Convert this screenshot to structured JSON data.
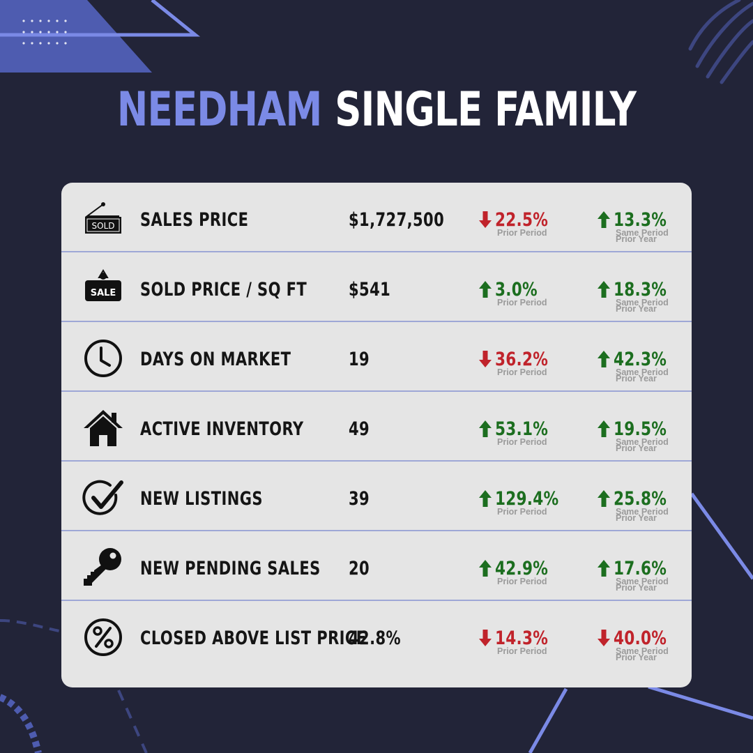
{
  "title": {
    "city": "NEEDHAM",
    "type": "SINGLE FAMILY"
  },
  "colors": {
    "background": "#222438",
    "accent": "#7b8ae6",
    "card": "#e5e5e5",
    "up": "#1c6e1f",
    "down": "#c0232b"
  },
  "labels": {
    "prior_period": "Prior Period",
    "same_period": "Same Period",
    "prior_year": "Prior Year"
  },
  "rows": [
    {
      "icon": "sold-sign-icon",
      "icon_text": "SOLD",
      "label": "SALES PRICE",
      "value": "$1,727,500",
      "prior": {
        "dir": "down",
        "pct": "22.5%"
      },
      "yoy": {
        "dir": "up",
        "pct": "13.3%"
      }
    },
    {
      "icon": "sale-sign-icon",
      "icon_text": "SALE",
      "label": "SOLD PRICE / SQ FT",
      "value": "$541",
      "prior": {
        "dir": "up",
        "pct": "3.0%"
      },
      "yoy": {
        "dir": "up",
        "pct": "18.3%"
      }
    },
    {
      "icon": "clock-icon",
      "label": "DAYS ON MARKET",
      "value": "19",
      "prior": {
        "dir": "down",
        "pct": "36.2%"
      },
      "yoy": {
        "dir": "up",
        "pct": "42.3%"
      }
    },
    {
      "icon": "house-icon",
      "label": "ACTIVE INVENTORY",
      "value": "49",
      "prior": {
        "dir": "up",
        "pct": "53.1%"
      },
      "yoy": {
        "dir": "up",
        "pct": "19.5%"
      }
    },
    {
      "icon": "checkmark-icon",
      "label": "NEW LISTINGS",
      "value": "39",
      "prior": {
        "dir": "up",
        "pct": "129.4%"
      },
      "yoy": {
        "dir": "up",
        "pct": "25.8%"
      }
    },
    {
      "icon": "key-icon",
      "label": "NEW PENDING SALES",
      "value": "20",
      "prior": {
        "dir": "up",
        "pct": "42.9%"
      },
      "yoy": {
        "dir": "up",
        "pct": "17.6%"
      }
    },
    {
      "icon": "percent-icon",
      "label": "CLOSED ABOVE LIST PRICE",
      "value": "42.8%",
      "prior": {
        "dir": "down",
        "pct": "14.3%"
      },
      "yoy": {
        "dir": "down",
        "pct": "40.0%"
      }
    }
  ]
}
